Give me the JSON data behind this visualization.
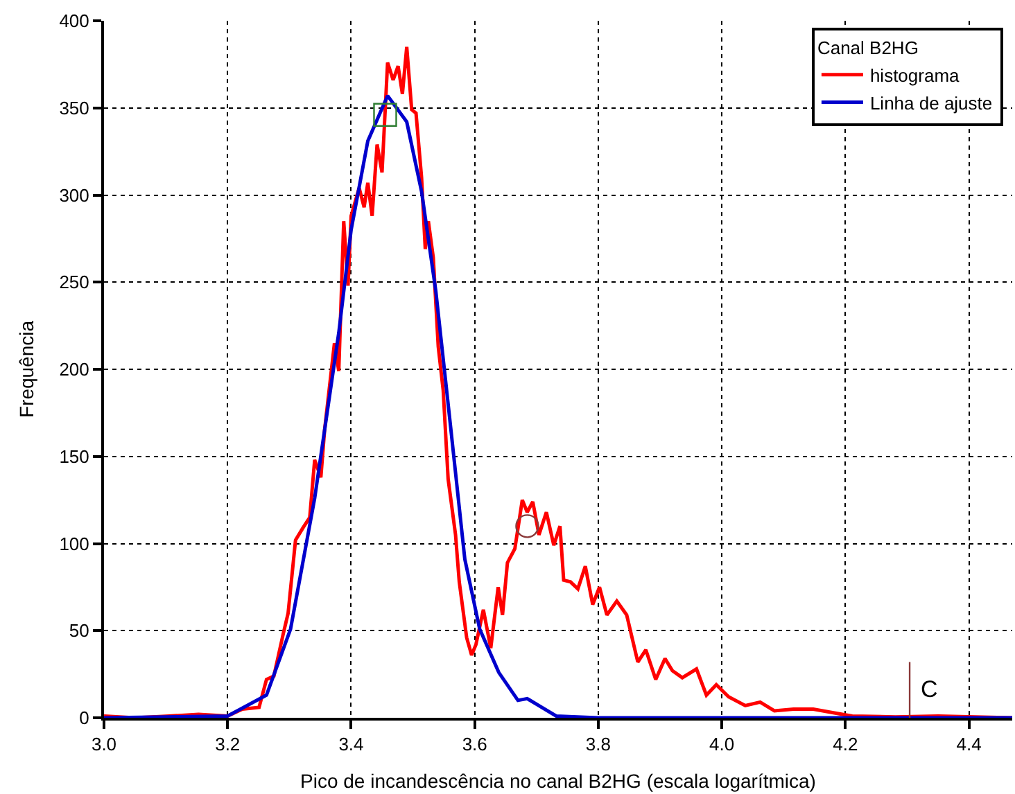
{
  "chart_data": {
    "type": "line",
    "xlabel": "Pico de incandescência no canal B2HG (escala logarítmica)",
    "ylabel": "Frequência",
    "legend_title": "Canal B2HG",
    "legend": "top right",
    "grid": true,
    "line_style": "solid",
    "xlim": [
      3.0,
      4.47
    ],
    "xticks": [
      {
        "value": 3.0,
        "label": "3.0"
      },
      {
        "value": 3.2,
        "label": "3.2"
      },
      {
        "value": 3.4,
        "label": "3.4"
      },
      {
        "value": 3.6,
        "label": "3.6"
      },
      {
        "value": 3.8,
        "label": "3.8"
      },
      {
        "value": 4.0,
        "label": "4.0"
      },
      {
        "value": 4.2,
        "label": "4.2"
      },
      {
        "value": 4.4,
        "label": "4.4"
      }
    ],
    "ylim": [
      0,
      400
    ],
    "yticks": [
      0,
      50,
      100,
      150,
      200,
      250,
      300,
      350,
      400
    ],
    "series": [
      {
        "name": "histograma",
        "color": "#ff0000",
        "x": [
          3.0,
          3.05,
          3.106,
          3.153,
          3.2,
          3.224,
          3.251,
          3.263,
          3.275,
          3.29,
          3.298,
          3.31,
          3.322,
          3.333,
          3.341,
          3.351,
          3.357,
          3.373,
          3.38,
          3.388,
          3.395,
          3.4,
          3.413,
          3.421,
          3.427,
          3.434,
          3.442,
          3.45,
          3.459,
          3.468,
          3.476,
          3.483,
          3.49,
          3.498,
          3.505,
          3.514,
          3.52,
          3.525,
          3.533,
          3.541,
          3.549,
          3.557,
          3.569,
          3.575,
          3.587,
          3.595,
          3.602,
          3.614,
          3.626,
          3.638,
          3.645,
          3.653,
          3.665,
          3.677,
          3.685,
          3.694,
          3.704,
          3.716,
          3.728,
          3.738,
          3.744,
          3.755,
          3.767,
          3.779,
          3.791,
          3.802,
          3.814,
          3.83,
          3.846,
          3.864,
          3.877,
          3.893,
          3.908,
          3.92,
          3.936,
          3.959,
          3.975,
          3.991,
          4.011,
          4.038,
          4.062,
          4.085,
          4.116,
          4.148,
          4.179,
          4.211,
          4.281,
          4.35,
          4.47
        ],
        "values": [
          1,
          0,
          1,
          2,
          1,
          5,
          6,
          22,
          24,
          48,
          60,
          102,
          109,
          115,
          148,
          138,
          165,
          215,
          199,
          285,
          248,
          288,
          304,
          293,
          307,
          288,
          329,
          313,
          376,
          366,
          374,
          358,
          385,
          349,
          347,
          310,
          269,
          285,
          264,
          213,
          188,
          137,
          105,
          78,
          46,
          36,
          42,
          62,
          40,
          75,
          59,
          89,
          97,
          125,
          118,
          124,
          105,
          118,
          99,
          110,
          79,
          78,
          74,
          87,
          65,
          75,
          59,
          67,
          59,
          32,
          39,
          22,
          34,
          27,
          23,
          28,
          13,
          19,
          12,
          7,
          9,
          4,
          5,
          5,
          3,
          1,
          0.5,
          1,
          0
        ]
      },
      {
        "name": "Linha de ajuste",
        "color": "#0000cc",
        "x": [
          3.0,
          3.1,
          3.2,
          3.263,
          3.302,
          3.341,
          3.38,
          3.4,
          3.427,
          3.459,
          3.49,
          3.514,
          3.537,
          3.561,
          3.584,
          3.608,
          3.639,
          3.67,
          3.685,
          3.732,
          3.8,
          4.47
        ],
        "values": [
          0,
          0.5,
          1,
          13,
          51,
          126,
          221,
          280,
          331,
          357,
          342,
          302,
          245,
          167,
          91,
          51,
          26,
          10,
          11,
          1,
          0,
          0
        ]
      },
      {
        "type": "scatter",
        "marker": "square",
        "color": "#2e7d32",
        "x": [
          3.455
        ],
        "values": [
          346
        ]
      },
      {
        "type": "scatter",
        "marker": "circle",
        "color": "#8b3a3a",
        "x": [
          3.685
        ],
        "values": [
          110
        ]
      }
    ],
    "ref_lines": [
      {
        "axis": "x",
        "value": 4.304,
        "label": "C",
        "color": "#8b3a3a"
      }
    ]
  }
}
